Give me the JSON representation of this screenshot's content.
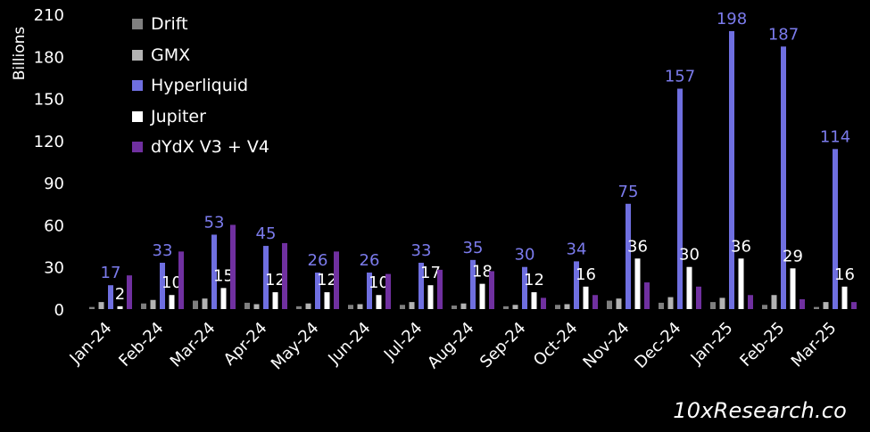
{
  "chart_data": {
    "type": "bar",
    "ylabel": "Billions",
    "ylim": [
      0,
      210
    ],
    "yticks": [
      "0",
      "30",
      "60",
      "90",
      "120",
      "150",
      "180",
      "210"
    ],
    "yticks_values": [
      0,
      30,
      60,
      90,
      120,
      150,
      180,
      210
    ],
    "categories": [
      "Jan-24",
      "Feb-24",
      "Mar-24",
      "Apr-24",
      "May-24",
      "Jun-24",
      "Jul-24",
      "Aug-24",
      "Sep-24",
      "Oct-24",
      "Nov-24",
      "Dec-24",
      "Jan-25",
      "Feb-25",
      "Mar-25"
    ],
    "legend_position": "top-left",
    "grid": false,
    "series": [
      {
        "name": "Drift",
        "color": "#7f7f7f",
        "values": [
          1.5,
          4,
          6,
          4.5,
          2,
          3,
          3,
          2.5,
          2,
          3,
          6,
          4.5,
          5,
          3,
          1.5
        ]
      },
      {
        "name": "GMX",
        "color": "#b3b3b3",
        "values": [
          5,
          6.5,
          7.5,
          3.5,
          4,
          3.5,
          5,
          4,
          3,
          3.5,
          7.5,
          8.5,
          8,
          10,
          5
        ]
      },
      {
        "name": "Hyperliquid",
        "color": "#6f6fe0",
        "label_color": "#7b7bec",
        "values": [
          17,
          33,
          53,
          45,
          26,
          26,
          33,
          35,
          30,
          34,
          75,
          157,
          198,
          187,
          114
        ],
        "labels": [
          "17",
          "33",
          "53",
          "45",
          "26",
          "26",
          "33",
          "35",
          "30",
          "34",
          "75",
          "157",
          "198",
          "187",
          "114"
        ]
      },
      {
        "name": "Jupiter",
        "color": "#ffffff",
        "label_color": "#ffffff",
        "values": [
          2,
          10,
          15,
          12,
          12,
          10,
          17,
          18,
          12,
          16,
          36,
          30,
          36,
          29,
          16
        ],
        "labels": [
          "2",
          "10",
          "15",
          "12",
          "12",
          "10",
          "17",
          "18",
          "12",
          "16",
          "36",
          "30",
          "36",
          "29",
          "16"
        ]
      },
      {
        "name": "dYdX V3 + V4",
        "color": "#7030a0",
        "values": [
          24,
          41,
          60,
          47,
          41,
          25,
          28,
          27,
          8,
          10,
          19,
          16,
          10,
          7,
          5
        ]
      }
    ]
  },
  "watermark": "10xResearch.co"
}
